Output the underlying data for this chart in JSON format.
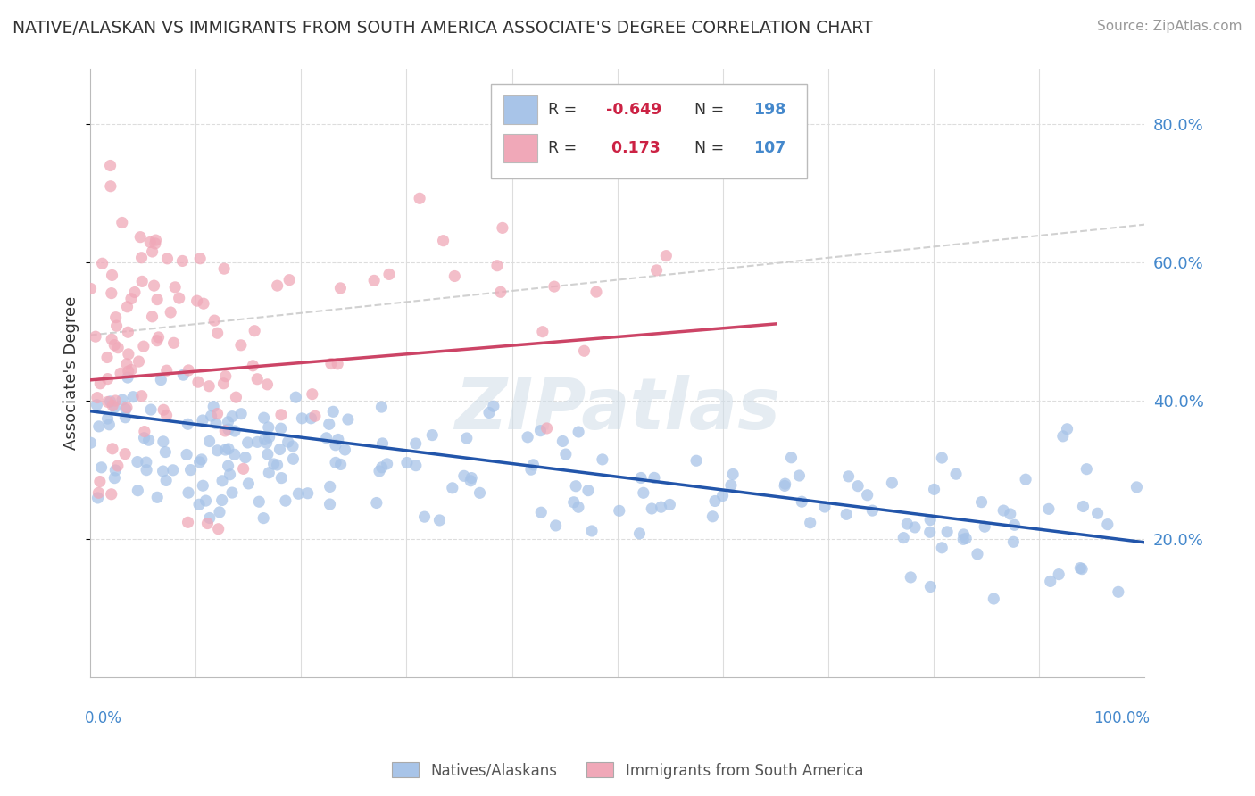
{
  "title": "NATIVE/ALASKAN VS IMMIGRANTS FROM SOUTH AMERICA ASSOCIATE'S DEGREE CORRELATION CHART",
  "source": "Source: ZipAtlas.com",
  "ylabel": "Associate's Degree",
  "r_native": -0.649,
  "n_native": 198,
  "r_immigrant": 0.173,
  "n_immigrant": 107,
  "native_color": "#a8c4e8",
  "immigrant_color": "#f0a8b8",
  "trend_native_color": "#2255aa",
  "trend_immigrant_color": "#cc4466",
  "trend_gray_color": "#cccccc",
  "watermark": "ZIPatlas",
  "background_color": "#ffffff",
  "xlim": [
    0.0,
    1.0
  ],
  "ylim": [
    0.0,
    0.88
  ],
  "y_ticks": [
    0.2,
    0.4,
    0.6,
    0.8
  ],
  "y_tick_labels": [
    "20.0%",
    "40.0%",
    "60.0%",
    "80.0%"
  ],
  "native_trend_start": 0.385,
  "native_trend_end": 0.195,
  "immigrant_trend_start": 0.43,
  "immigrant_trend_end": 0.555,
  "gray_trend_start": 0.495,
  "gray_trend_end": 0.655
}
